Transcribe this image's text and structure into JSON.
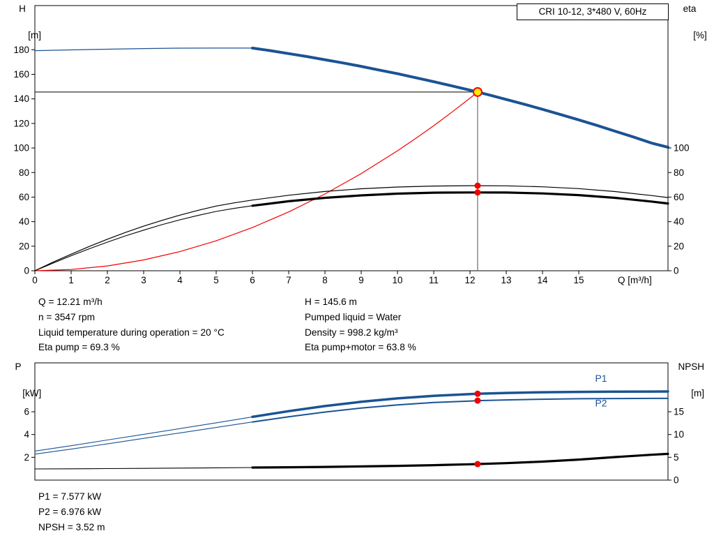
{
  "header": {
    "title": "CRI 10-12, 3*480 V, 60Hz"
  },
  "info_top": {
    "left": [
      "Q = 12.21 m³/h",
      "n = 3547 rpm",
      "Liquid temperature during operation = 20 °C",
      "Eta pump = 69.3 %"
    ],
    "right": [
      "H = 145.6 m",
      "Pumped liquid = Water",
      "Density = 998.2 kg/m³",
      "Eta pump+motor = 63.8 %"
    ]
  },
  "info_bottom": [
    "P1 = 7.577 kW",
    "P2 = 6.976 kW",
    "NPSH = 3.52 m"
  ],
  "colors": {
    "curve_blue": "#1a5394",
    "curve_black": "#000000",
    "curve_red": "#f20000",
    "marker_fill": "#ffe800",
    "ref_gray": "#808080"
  },
  "chart_data": [
    {
      "type": "line",
      "name": "qh-performance-chart",
      "x_axis": {
        "label": "Q [m³/h]",
        "min": 0,
        "max": 17.46,
        "ticks": [
          0,
          1,
          2,
          3,
          4,
          5,
          6,
          7,
          8,
          9,
          10,
          11,
          12,
          13,
          14,
          15
        ]
      },
      "y_left": {
        "label_lines": [
          "H",
          "[m]"
        ],
        "min": 0,
        "max": 216,
        "ticks": [
          0,
          20,
          40,
          60,
          80,
          100,
          120,
          140,
          160,
          180
        ]
      },
      "y_right": {
        "label_lines": [
          "eta",
          "[%]"
        ],
        "min": 0,
        "max": 216,
        "ticks": [
          0,
          20,
          40,
          60,
          80,
          100
        ]
      },
      "operating_point": {
        "Q": 12.21,
        "H": 145.6,
        "eta_pump": 69.3,
        "eta_pump_motor": 63.8
      },
      "ref_lines": [
        {
          "orient": "h",
          "value": 145.6,
          "from": 0,
          "to": 12.21,
          "axis": "left",
          "color": "#000000",
          "width": 1
        },
        {
          "orient": "v",
          "value": 12.21,
          "from": 0,
          "to": 145.6,
          "axis": "left",
          "color": "#808080",
          "width": 1.4
        }
      ],
      "series": [
        {
          "name": "system-curve",
          "axis": "left",
          "color": "#f20000",
          "width": 1.2,
          "points": [
            [
              0,
              0
            ],
            [
              1,
              1.0
            ],
            [
              2,
              3.9
            ],
            [
              3,
              8.8
            ],
            [
              4,
              15.6
            ],
            [
              5,
              24.4
            ],
            [
              6,
              35.2
            ],
            [
              7,
              47.9
            ],
            [
              8,
              62.5
            ],
            [
              9,
              79.1
            ],
            [
              10,
              97.7
            ],
            [
              10.5,
              107.7
            ],
            [
              11,
              118.2
            ],
            [
              11.5,
              129.2
            ],
            [
              12,
              140.6
            ],
            [
              12.21,
              145.6
            ]
          ]
        },
        {
          "name": "eta-pump-motor-curve-preceding",
          "axis": "right",
          "color": "#000000",
          "width": 1.1,
          "points": [
            [
              0,
              0
            ],
            [
              0.5,
              6.2
            ],
            [
              1,
              12.2
            ],
            [
              1.5,
              17.9
            ],
            [
              2,
              23.3
            ],
            [
              2.5,
              28.4
            ],
            [
              3,
              33.1
            ],
            [
              3.5,
              37.5
            ],
            [
              4,
              41.5
            ],
            [
              4.5,
              45.1
            ],
            [
              5,
              48.3
            ],
            [
              5.5,
              50.8
            ],
            [
              6,
              53.0
            ]
          ]
        },
        {
          "name": "eta-pump-curve",
          "axis": "right",
          "color": "#000000",
          "width": 1.2,
          "points": [
            [
              0,
              0
            ],
            [
              0.5,
              7.0
            ],
            [
              1,
              13.5
            ],
            [
              1.5,
              19.8
            ],
            [
              2,
              25.7
            ],
            [
              2.5,
              31.2
            ],
            [
              3,
              36.3
            ],
            [
              3.5,
              41.0
            ],
            [
              4,
              45.3
            ],
            [
              4.5,
              49.2
            ],
            [
              5,
              52.7
            ],
            [
              5.5,
              55.3
            ],
            [
              6,
              57.6
            ],
            [
              7,
              61.5
            ],
            [
              8,
              64.6
            ],
            [
              9,
              66.8
            ],
            [
              10,
              68.2
            ],
            [
              11,
              69.0
            ],
            [
              12,
              69.3
            ],
            [
              12.21,
              69.3
            ],
            [
              13,
              69.2
            ],
            [
              14,
              68.4
            ],
            [
              15,
              66.9
            ],
            [
              16,
              64.5
            ],
            [
              17,
              61.3
            ],
            [
              17.46,
              59.6
            ]
          ]
        },
        {
          "name": "eta-pump-motor-curve",
          "axis": "right",
          "color": "#000000",
          "width": 3.2,
          "points": [
            [
              6,
              53.0
            ],
            [
              7,
              56.6
            ],
            [
              8,
              59.4
            ],
            [
              9,
              61.4
            ],
            [
              10,
              62.8
            ],
            [
              11,
              63.6
            ],
            [
              12,
              63.8
            ],
            [
              12.21,
              63.8
            ],
            [
              13,
              63.7
            ],
            [
              14,
              63.0
            ],
            [
              15,
              61.6
            ],
            [
              16,
              59.4
            ],
            [
              17,
              56.4
            ],
            [
              17.46,
              54.8
            ]
          ]
        },
        {
          "name": "head-curve-preceding",
          "axis": "left",
          "color": "#1a5394",
          "width": 1.3,
          "points": [
            [
              0,
              179.3
            ],
            [
              1,
              179.9
            ],
            [
              2,
              180.5
            ],
            [
              3,
              181.0
            ],
            [
              4,
              181.3
            ],
            [
              5,
              181.4
            ],
            [
              6,
              181.4
            ]
          ]
        },
        {
          "name": "head-curve",
          "axis": "left",
          "color": "#1a5394",
          "width": 4,
          "points": [
            [
              6,
              181.4
            ],
            [
              6.5,
              179.3
            ],
            [
              7,
              176.9
            ],
            [
              7.5,
              174.5
            ],
            [
              8,
              171.9
            ],
            [
              8.5,
              169.3
            ],
            [
              9,
              166.5
            ],
            [
              9.5,
              163.5
            ],
            [
              10,
              160.5
            ],
            [
              10.5,
              157.3
            ],
            [
              11,
              154.0
            ],
            [
              11.5,
              150.6
            ],
            [
              12,
              147.1
            ],
            [
              12.21,
              145.6
            ],
            [
              12.5,
              143.4
            ],
            [
              13,
              139.5
            ],
            [
              13.5,
              135.6
            ],
            [
              14,
              131.5
            ],
            [
              14.5,
              127.2
            ],
            [
              15,
              122.9
            ],
            [
              15.5,
              118.4
            ],
            [
              16,
              113.7
            ],
            [
              16.5,
              109.0
            ],
            [
              17,
              104.1
            ],
            [
              17.46,
              100.6
            ]
          ]
        }
      ],
      "markers": [
        {
          "name": "eta-pump-point",
          "x": 12.21,
          "value": 69.3,
          "axis": "right",
          "r": 4.5,
          "fill": "#f20000",
          "stroke": "none",
          "sw": 0
        },
        {
          "name": "eta-pump-motor-point",
          "x": 12.21,
          "value": 63.8,
          "axis": "right",
          "r": 4.5,
          "fill": "#f20000",
          "stroke": "none",
          "sw": 0
        },
        {
          "name": "operating-point",
          "x": 12.21,
          "value": 145.6,
          "axis": "left",
          "r": 6,
          "fill": "#ffe800",
          "stroke": "#f20000",
          "sw": 2
        }
      ],
      "annotations": []
    },
    {
      "type": "line",
      "name": "power-npsh-chart",
      "x_axis": {
        "label": "",
        "min": 0,
        "max": 17.46,
        "ticks": []
      },
      "y_left": {
        "label_lines": [
          "P",
          "[kW]"
        ],
        "min": 0,
        "max": 10.29,
        "ticks": [
          2,
          4,
          6
        ]
      },
      "y_right": {
        "label_lines": [
          "NPSH",
          "[m]"
        ],
        "min": 0,
        "max": 25.72,
        "ticks": [
          0,
          5,
          10,
          15
        ]
      },
      "operating_point": {
        "Q": 12.21,
        "P1": 7.577,
        "P2": 6.976,
        "NPSH": 3.52
      },
      "ref_lines": [],
      "series": [
        {
          "name": "npsh-curve-preceding",
          "axis": "right",
          "color": "#000000",
          "width": 1.1,
          "points": [
            [
              0,
              2.45
            ],
            [
              1,
              2.48
            ],
            [
              2,
              2.52
            ],
            [
              3,
              2.57
            ],
            [
              4,
              2.63
            ],
            [
              5,
              2.69
            ],
            [
              6,
              2.76
            ]
          ]
        },
        {
          "name": "npsh-curve",
          "axis": "right",
          "color": "#000000",
          "width": 3.2,
          "points": [
            [
              6,
              2.76
            ],
            [
              7,
              2.82
            ],
            [
              8,
              2.9
            ],
            [
              9,
              3.0
            ],
            [
              10,
              3.12
            ],
            [
              11,
              3.28
            ],
            [
              12,
              3.47
            ],
            [
              12.21,
              3.52
            ],
            [
              13,
              3.72
            ],
            [
              14,
              4.05
            ],
            [
              15,
              4.5
            ],
            [
              16,
              5.05
            ],
            [
              17,
              5.55
            ],
            [
              17.46,
              5.75
            ]
          ]
        },
        {
          "name": "p2-curve-preceding",
          "axis": "left",
          "color": "#1a5394",
          "width": 1.1,
          "points": [
            [
              0,
              2.28
            ],
            [
              1,
              2.72
            ],
            [
              2,
              3.18
            ],
            [
              3,
              3.66
            ],
            [
              4,
              4.14
            ],
            [
              5,
              4.62
            ],
            [
              6,
              5.1
            ]
          ]
        },
        {
          "name": "p1-curve-preceding",
          "axis": "left",
          "color": "#1a5394",
          "width": 1.1,
          "points": [
            [
              0,
              2.55
            ],
            [
              1,
              3.02
            ],
            [
              2,
              3.52
            ],
            [
              3,
              4.02
            ],
            [
              4,
              4.52
            ],
            [
              5,
              5.03
            ],
            [
              6,
              5.55
            ]
          ]
        },
        {
          "name": "p2-curve",
          "axis": "left",
          "color": "#1a5394",
          "width": 2,
          "points": [
            [
              6,
              5.1
            ],
            [
              7,
              5.56
            ],
            [
              8,
              5.97
            ],
            [
              9,
              6.32
            ],
            [
              10,
              6.6
            ],
            [
              11,
              6.81
            ],
            [
              12,
              6.94
            ],
            [
              12.21,
              6.976
            ],
            [
              13,
              7.04
            ],
            [
              14,
              7.1
            ],
            [
              15,
              7.14
            ],
            [
              16,
              7.16
            ],
            [
              17,
              7.17
            ],
            [
              17.46,
              7.17
            ]
          ]
        },
        {
          "name": "p1-curve",
          "axis": "left",
          "color": "#1a5394",
          "width": 3.5,
          "points": [
            [
              6,
              5.55
            ],
            [
              7,
              6.05
            ],
            [
              8,
              6.5
            ],
            [
              9,
              6.87
            ],
            [
              10,
              7.17
            ],
            [
              11,
              7.4
            ],
            [
              12,
              7.55
            ],
            [
              12.21,
              7.577
            ],
            [
              13,
              7.65
            ],
            [
              14,
              7.71
            ],
            [
              15,
              7.74
            ],
            [
              16,
              7.76
            ],
            [
              17,
              7.77
            ],
            [
              17.46,
              7.78
            ]
          ]
        }
      ],
      "markers": [
        {
          "name": "p1-point",
          "x": 12.21,
          "value": 7.577,
          "axis": "left",
          "r": 4.5,
          "fill": "#f20000",
          "stroke": "none",
          "sw": 0
        },
        {
          "name": "p2-point",
          "x": 12.21,
          "value": 6.976,
          "axis": "left",
          "r": 4.5,
          "fill": "#f20000",
          "stroke": "none",
          "sw": 0
        },
        {
          "name": "npsh-point",
          "x": 12.21,
          "value": 3.52,
          "axis": "right",
          "r": 4.5,
          "fill": "#f20000",
          "stroke": "none",
          "sw": 0
        }
      ],
      "annotations": [
        {
          "text": "P1",
          "x": 15.45,
          "y": 8.65,
          "axis": "left",
          "color": "#1a5394"
        },
        {
          "text": "P2",
          "x": 15.45,
          "y": 6.45,
          "axis": "left",
          "color": "#1a5394"
        }
      ]
    }
  ]
}
